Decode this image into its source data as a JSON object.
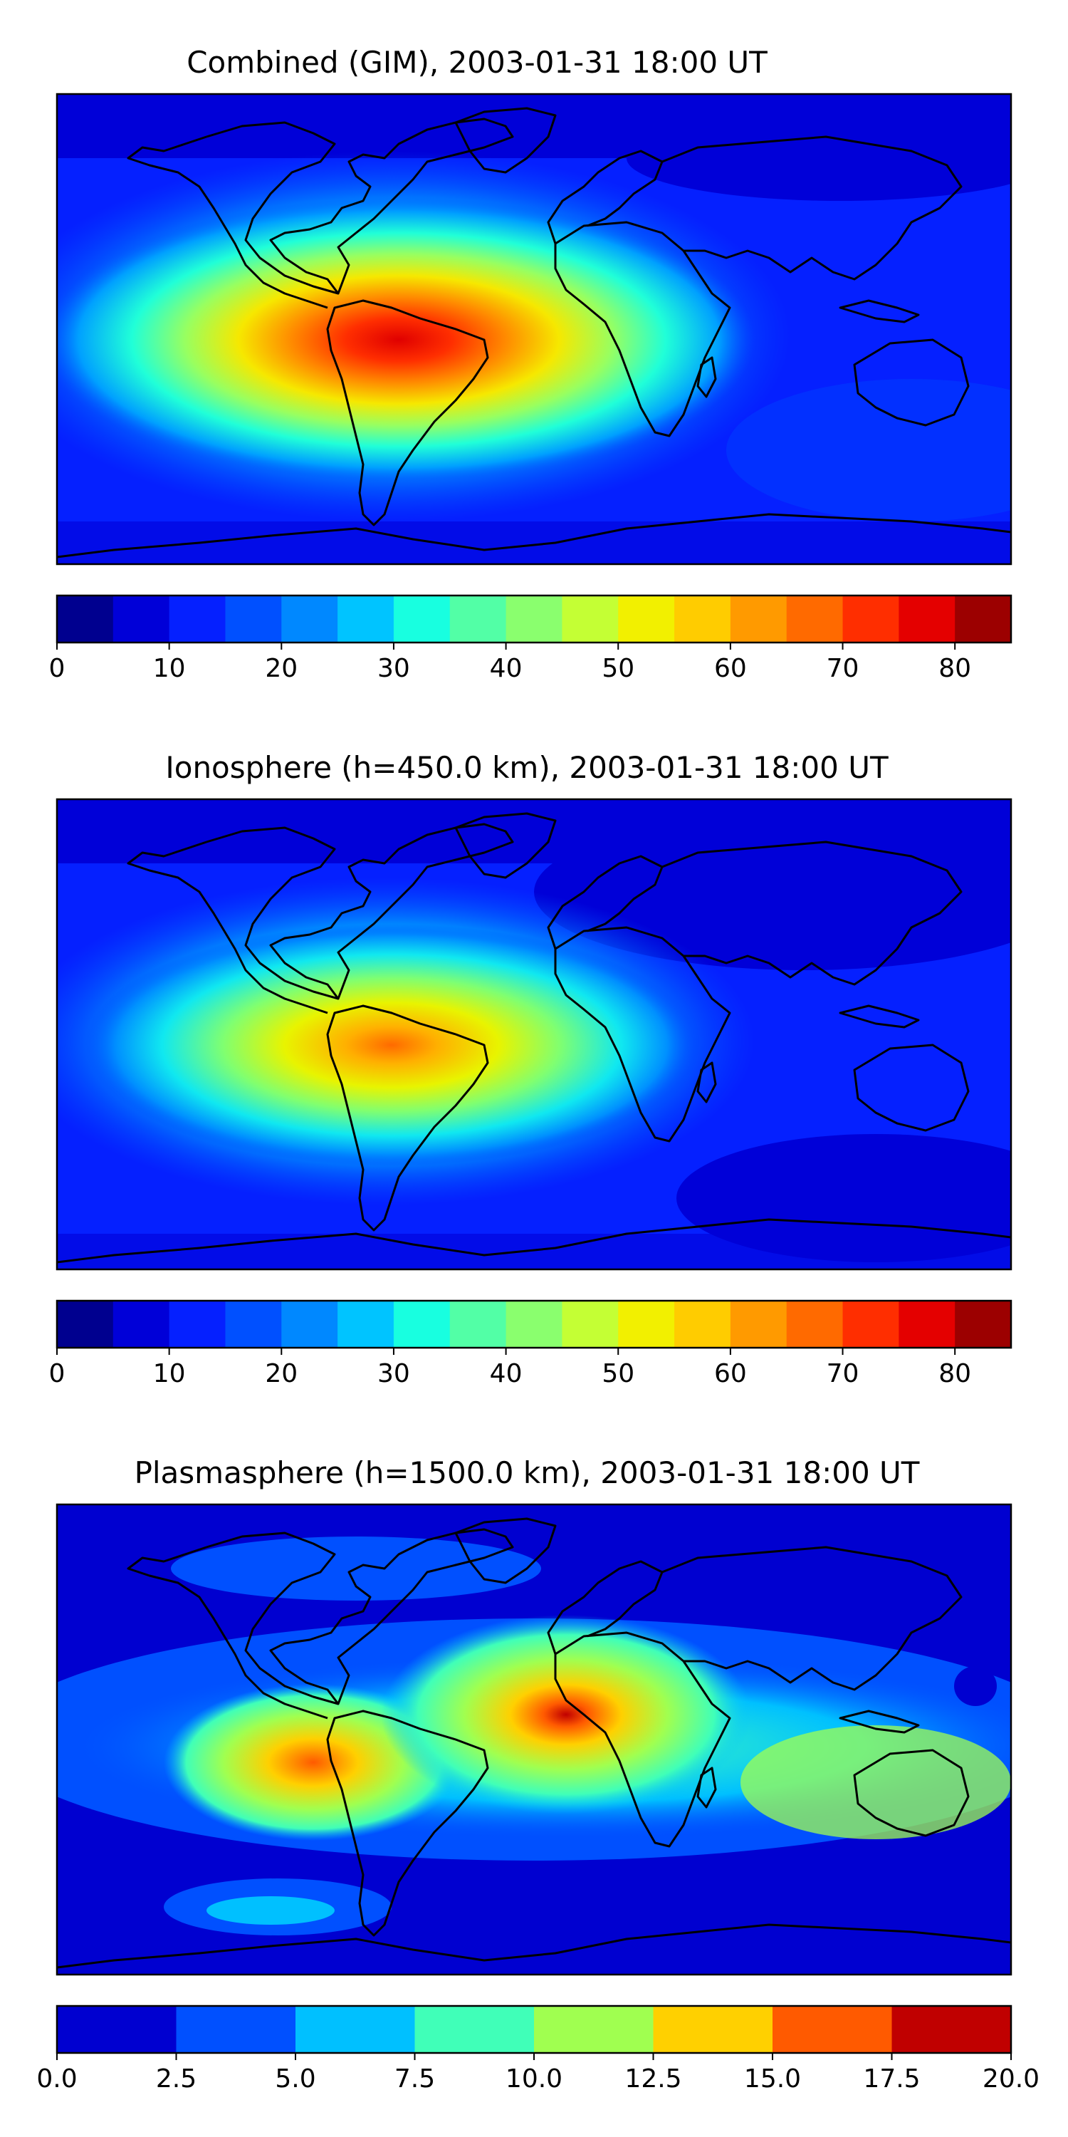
{
  "panels": [
    {
      "title": "Combined (GIM), 2003-01-31 18:00 UT",
      "colorbar": {
        "colors": [
          "#00008f",
          "#0000d8",
          "#0520ff",
          "#0050ff",
          "#0088ff",
          "#00c4ff",
          "#18ffe0",
          "#52ffa6",
          "#8aff6e",
          "#c4ff34",
          "#f2f000",
          "#ffcc00",
          "#ff9a00",
          "#ff6a00",
          "#ff2e00",
          "#e40000",
          "#9c0000"
        ],
        "ticks": [
          "0",
          "10",
          "20",
          "30",
          "40",
          "50",
          "60",
          "70",
          "80"
        ]
      }
    },
    {
      "title": "Ionosphere  (h=450.0 km), 2003-01-31 18:00 UT",
      "colorbar": {
        "colors": [
          "#00008f",
          "#0000d8",
          "#0520ff",
          "#0050ff",
          "#0088ff",
          "#00c4ff",
          "#18ffe0",
          "#52ffa6",
          "#8aff6e",
          "#c4ff34",
          "#f2f000",
          "#ffcc00",
          "#ff9a00",
          "#ff6a00",
          "#ff2e00",
          "#e40000",
          "#9c0000"
        ],
        "ticks": [
          "0",
          "10",
          "20",
          "30",
          "40",
          "50",
          "60",
          "70",
          "80"
        ]
      }
    },
    {
      "title": "Plasmasphere (h=1500.0 km), 2003-01-31 18:00 UT",
      "colorbar": {
        "colors": [
          "#0000d0",
          "#0050ff",
          "#00c0ff",
          "#40ffb8",
          "#a0ff50",
          "#ffd000",
          "#ff5a00",
          "#c00000"
        ],
        "ticks": [
          "0.0",
          "2.5",
          "5.0",
          "7.5",
          "10.0",
          "12.5",
          "15.0",
          "17.5",
          "20.0"
        ]
      }
    }
  ]
}
